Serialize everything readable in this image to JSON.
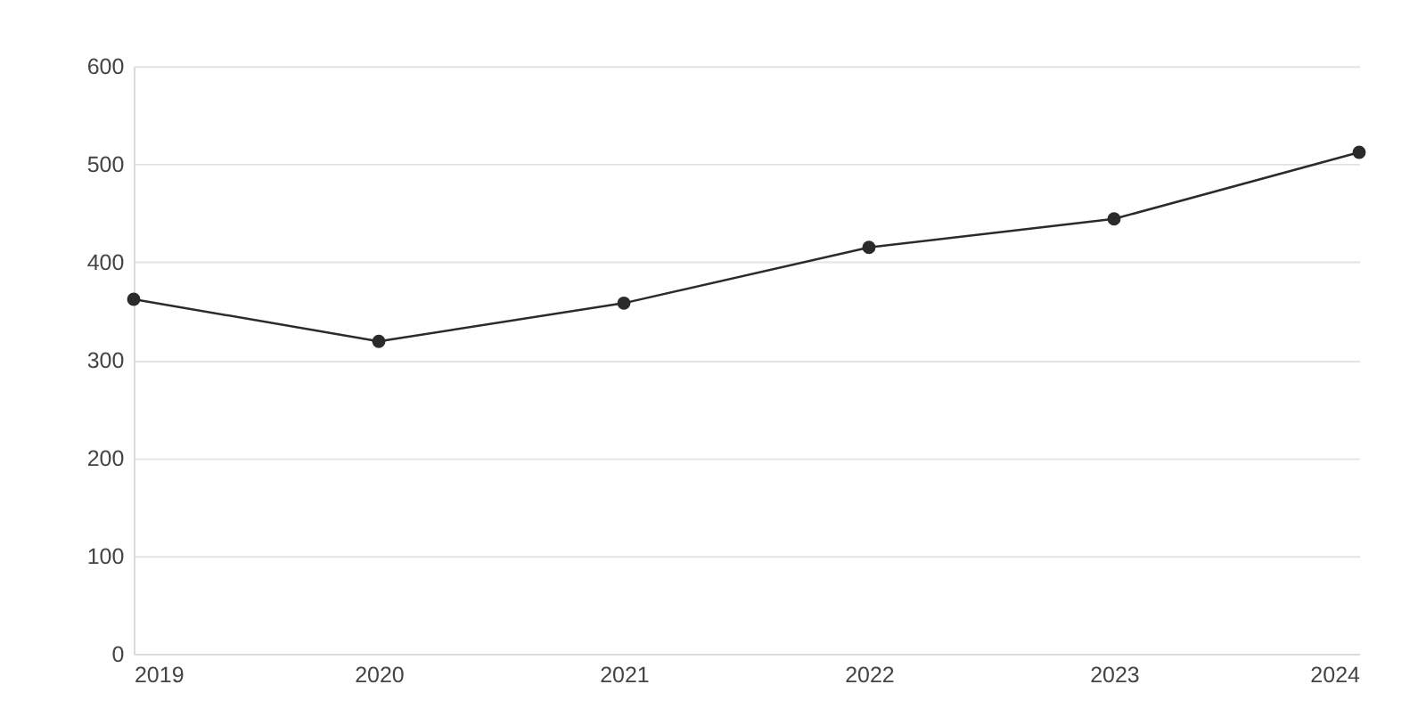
{
  "chart_data": {
    "type": "line",
    "x": [
      2019,
      2020,
      2021,
      2022,
      2023,
      2024
    ],
    "series": [
      {
        "color": "#2b2b2b",
        "values": [
          362,
          319,
          358,
          415,
          444,
          512
        ]
      }
    ],
    "xlim": [
      2019,
      2024
    ],
    "xticks": [
      2019,
      2020,
      2021,
      2022,
      2023,
      2024
    ],
    "ylim": [
      0,
      600
    ],
    "yticks": [
      0,
      100,
      200,
      300,
      400,
      500,
      600
    ],
    "grid": "y",
    "marker": "circle",
    "line_style": "solid",
    "legend": false
  }
}
